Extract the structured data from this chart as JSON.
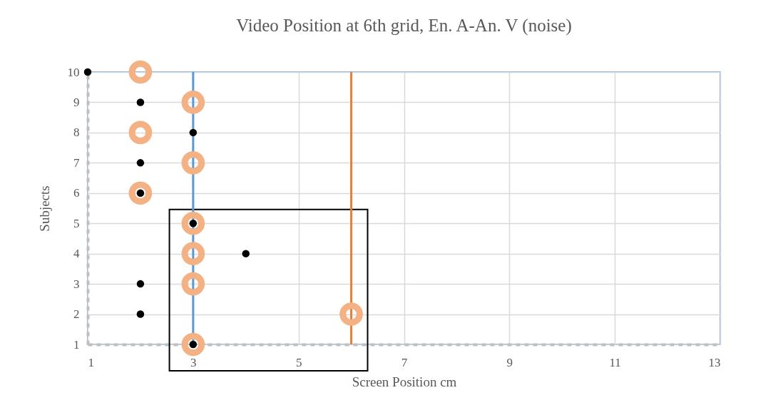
{
  "chart_data": {
    "type": "scatter",
    "title": "Video Position at 6th grid, En. A-An. V (noise)",
    "xlabel": "Screen Position cm",
    "ylabel": "Subjects",
    "xlim": [
      1,
      13
    ],
    "xticks": [
      1,
      3,
      5,
      7,
      9,
      11,
      13
    ],
    "ylim": [
      1,
      10
    ],
    "yticks": [
      1,
      2,
      3,
      4,
      5,
      6,
      7,
      8,
      9,
      10
    ],
    "grid": true,
    "marker": "circle",
    "series": [
      {
        "color": "#f4b183",
        "x": [
          2,
          3,
          2,
          3,
          2,
          3,
          3,
          3,
          6,
          3
        ],
        "values": [
          10,
          9,
          8,
          7,
          6,
          5,
          4,
          3,
          2,
          1
        ]
      },
      {
        "color": "#000000",
        "x": [
          1,
          2,
          3,
          2,
          2,
          3,
          4,
          2,
          2,
          3
        ],
        "values": [
          10,
          9,
          8,
          7,
          6,
          5,
          4,
          3,
          2,
          1
        ]
      }
    ],
    "ref_lines": [
      {
        "axis": "x",
        "value": 3,
        "color": "#5b9bd5"
      },
      {
        "axis": "x",
        "value": 6,
        "color": "#ed7d31"
      }
    ]
  }
}
